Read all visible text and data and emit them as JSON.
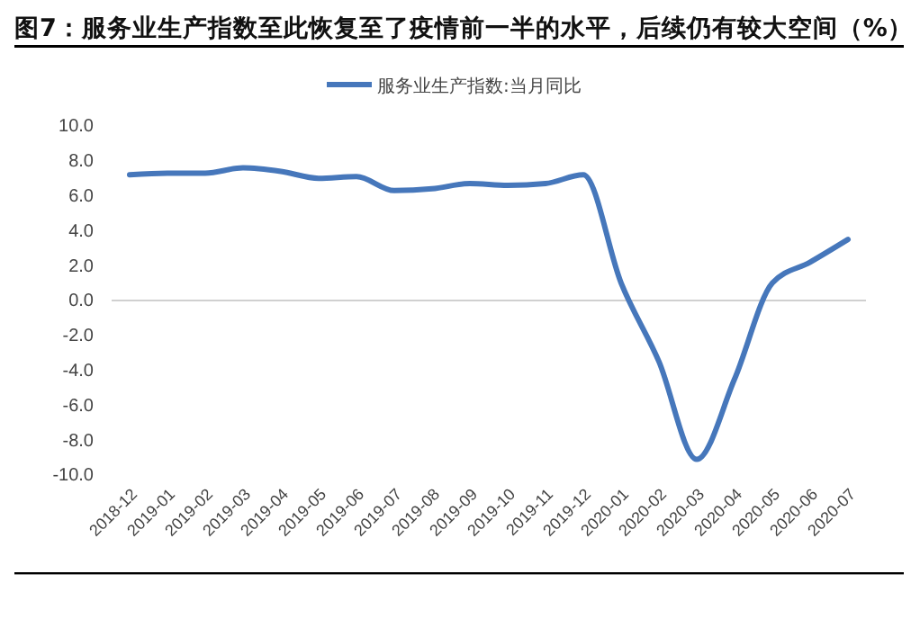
{
  "chart_data": {
    "type": "line",
    "title": "图7：服务业生产指数至此恢复至了疫情前一半的水平，后续仍有较大空间（%）",
    "categories": [
      "2018-12",
      "2019-01",
      "2019-02",
      "2019-03",
      "2019-04",
      "2019-05",
      "2019-06",
      "2019-07",
      "2019-08",
      "2019-09",
      "2019-10",
      "2019-11",
      "2019-12",
      "2020-01",
      "2020-02",
      "2020-03",
      "2020-04",
      "2020-05",
      "2020-06",
      "2020-07"
    ],
    "series": [
      {
        "name": "服务业生产指数:当月同比",
        "color": "#4677bb",
        "values": [
          7.2,
          7.3,
          7.3,
          7.6,
          7.4,
          7.0,
          7.1,
          6.3,
          6.4,
          6.7,
          6.6,
          6.7,
          7.2,
          1.0,
          -3.5,
          -9.1,
          -4.5,
          1.0,
          2.2,
          3.5
        ]
      }
    ],
    "ylim": [
      -10,
      10
    ],
    "yticks": [
      {
        "value": -10,
        "label": "-10.0"
      },
      {
        "value": -8,
        "label": "-8.0"
      },
      {
        "value": -6,
        "label": "-6.0"
      },
      {
        "value": -4,
        "label": "-4.0"
      },
      {
        "value": -2,
        "label": "-2.0"
      },
      {
        "value": 0,
        "label": "0.0"
      },
      {
        "value": 2,
        "label": "2.0"
      },
      {
        "value": 4,
        "label": "4.0"
      },
      {
        "value": 6,
        "label": "6.0"
      },
      {
        "value": 8,
        "label": "8.0"
      },
      {
        "value": 10,
        "label": "10.0"
      }
    ],
    "legend": "top"
  }
}
